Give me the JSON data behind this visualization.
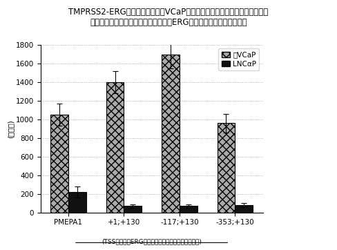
{
  "title_line1": "TMPRSS2-ERG融合体を発現するVCaP前立腺癌細胞におけるルシフェラーゼ",
  "title_line2": "レポーターアッセイにより確定されたERG結特異的プロモーター活性",
  "ylabel": "(光単位)",
  "xlabel": "(TSSに対するERGプロモーターセグメント相対位置)",
  "categories": [
    "PMEPA1",
    "+1;+130",
    "-117;+130",
    "-353;+130"
  ],
  "vcap_values": [
    1050,
    1400,
    1700,
    960
  ],
  "lncap_values": [
    220,
    70,
    70,
    80
  ],
  "vcap_errors": [
    120,
    120,
    150,
    100
  ],
  "lncap_errors": [
    60,
    20,
    20,
    20
  ],
  "ylim": [
    0,
    1800
  ],
  "yticks": [
    0,
    200,
    400,
    600,
    800,
    1000,
    1200,
    1400,
    1600,
    1800
  ],
  "vcap_color": "#aaaaaa",
  "lncap_color": "#111111",
  "legend_vcap": "図VCaP",
  "legend_lncap": "LNCαP",
  "bar_width": 0.32,
  "title_fontsize": 8.5,
  "axis_fontsize": 7.5,
  "tick_fontsize": 7.5,
  "legend_fontsize": 7.5
}
